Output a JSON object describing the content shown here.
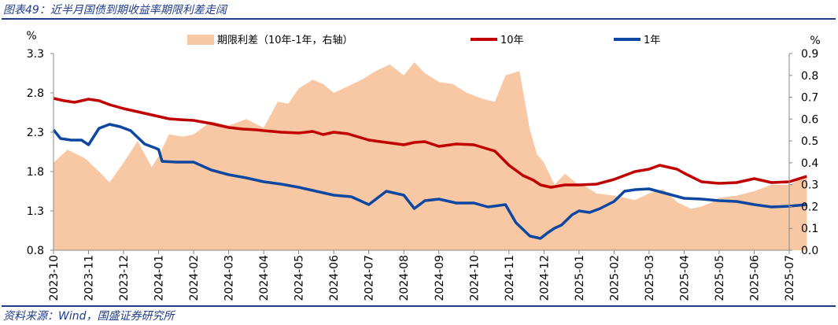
{
  "figure": {
    "title": "图表49：近半月国债到期收益率期限利差走阔",
    "source": "资料来源：Wind，国盛证券研究所"
  },
  "chart_data": {
    "type": "line",
    "title": "图表49：近半月国债到期收益率期限利差走阔",
    "left_axis": {
      "unit": "%",
      "ylim": [
        0.8,
        3.3
      ],
      "ticks": [
        "0.8",
        "1.3",
        "1.8",
        "2.3",
        "2.8",
        "3.3"
      ]
    },
    "right_axis": {
      "unit": "%",
      "ylim": [
        0.0,
        0.9
      ],
      "ticks": [
        "0.0",
        "0.1",
        "0.2",
        "0.3",
        "0.4",
        "0.5",
        "0.6",
        "0.7",
        "0.8",
        "0.9"
      ]
    },
    "x_ticks": [
      "2023-10",
      "2023-11",
      "2023-12",
      "2024-01",
      "2024-02",
      "2024-03",
      "2024-04",
      "2024-05",
      "2024-06",
      "2024-07",
      "2024-08",
      "2024-09",
      "2024-10",
      "2024-11",
      "2024-12",
      "2025-01",
      "2025-02",
      "2025-03",
      "2025-04",
      "2025-05",
      "2025-06",
      "2025-07"
    ],
    "legend": {
      "position": "top",
      "labels": [
        "期限利差（10年-1年，右轴）",
        "10年",
        "1年"
      ]
    },
    "series": [
      {
        "name": "10年",
        "axis": "left",
        "color": "#c00000",
        "x": [
          0,
          0.3,
          0.6,
          1.0,
          1.3,
          1.6,
          2.0,
          2.4,
          2.8,
          3.0,
          3.3,
          3.6,
          4.0,
          4.5,
          5.0,
          5.4,
          5.8,
          6.0,
          6.5,
          7.0,
          7.4,
          7.7,
          8.0,
          8.4,
          8.7,
          9.0,
          9.5,
          10.0,
          10.3,
          10.6,
          11.0,
          11.5,
          12.0,
          12.3,
          12.6,
          12.8,
          13.0,
          13.4,
          13.7,
          13.9,
          14.2,
          14.6,
          15.0,
          15.5,
          16.0,
          16.3,
          16.6,
          17.0,
          17.3,
          17.6,
          17.8,
          18.0,
          18.5,
          19.0,
          19.5,
          20.0,
          20.5,
          21.0,
          21.5
        ],
        "values": [
          2.73,
          2.7,
          2.68,
          2.72,
          2.7,
          2.65,
          2.6,
          2.56,
          2.52,
          2.5,
          2.47,
          2.46,
          2.45,
          2.41,
          2.36,
          2.34,
          2.33,
          2.32,
          2.3,
          2.29,
          2.31,
          2.27,
          2.3,
          2.28,
          2.24,
          2.2,
          2.17,
          2.14,
          2.17,
          2.18,
          2.12,
          2.15,
          2.14,
          2.1,
          2.06,
          1.97,
          1.88,
          1.75,
          1.69,
          1.63,
          1.6,
          1.63,
          1.63,
          1.64,
          1.7,
          1.75,
          1.8,
          1.83,
          1.88,
          1.85,
          1.83,
          1.78,
          1.67,
          1.65,
          1.66,
          1.71,
          1.66,
          1.67,
          1.74
        ]
      },
      {
        "name": "1年",
        "axis": "left",
        "color": "#0d47a1",
        "x": [
          0,
          0.2,
          0.5,
          0.8,
          1.0,
          1.3,
          1.6,
          1.9,
          2.2,
          2.6,
          2.9,
          3.0,
          3.1,
          3.5,
          4.0,
          4.5,
          5.0,
          5.5,
          6.0,
          6.5,
          7.0,
          7.5,
          8.0,
          8.5,
          9.0,
          9.5,
          10.0,
          10.3,
          10.6,
          11.0,
          11.5,
          12.0,
          12.4,
          12.9,
          13.2,
          13.6,
          13.9,
          14.1,
          14.3,
          14.5,
          14.8,
          15.0,
          15.3,
          15.6,
          16.0,
          16.3,
          16.6,
          17.0,
          17.5,
          18.0,
          18.5,
          19.0,
          19.5,
          20.0,
          20.5,
          21.0,
          21.5
        ],
        "values": [
          2.33,
          2.22,
          2.2,
          2.2,
          2.14,
          2.35,
          2.4,
          2.37,
          2.32,
          2.15,
          2.1,
          2.08,
          1.93,
          1.92,
          1.92,
          1.82,
          1.76,
          1.72,
          1.67,
          1.64,
          1.6,
          1.55,
          1.5,
          1.48,
          1.38,
          1.55,
          1.5,
          1.33,
          1.43,
          1.45,
          1.4,
          1.4,
          1.35,
          1.38,
          1.15,
          0.98,
          0.95,
          1.02,
          1.08,
          1.12,
          1.25,
          1.3,
          1.28,
          1.33,
          1.42,
          1.55,
          1.57,
          1.58,
          1.52,
          1.46,
          1.45,
          1.43,
          1.42,
          1.38,
          1.35,
          1.36,
          1.38
        ]
      },
      {
        "name": "期限利差（10年-1年，右轴）",
        "axis": "right",
        "color": "#f8c8a4",
        "x": [
          0,
          0.4,
          0.9,
          1.3,
          1.6,
          2.0,
          2.4,
          2.8,
          3.0,
          3.3,
          3.7,
          4.0,
          4.5,
          5.0,
          5.5,
          6.0,
          6.4,
          6.7,
          7.0,
          7.4,
          7.7,
          8.0,
          8.4,
          8.8,
          9.2,
          9.6,
          10.0,
          10.3,
          10.6,
          11.0,
          11.4,
          11.8,
          12.3,
          12.6,
          12.9,
          13.3,
          13.6,
          13.8,
          14.0,
          14.3,
          14.6,
          14.9,
          15.2,
          15.5,
          16.0,
          16.3,
          16.6,
          17.0,
          17.4,
          17.8,
          18.2,
          18.5,
          18.8,
          19.0,
          19.5,
          20.0,
          20.5,
          21.0,
          21.5
        ],
        "values": [
          0.4,
          0.46,
          0.42,
          0.36,
          0.31,
          0.4,
          0.5,
          0.38,
          0.43,
          0.53,
          0.52,
          0.53,
          0.59,
          0.57,
          0.6,
          0.56,
          0.68,
          0.67,
          0.74,
          0.78,
          0.76,
          0.72,
          0.75,
          0.78,
          0.82,
          0.85,
          0.8,
          0.86,
          0.81,
          0.77,
          0.76,
          0.72,
          0.69,
          0.68,
          0.8,
          0.82,
          0.55,
          0.44,
          0.4,
          0.3,
          0.35,
          0.31,
          0.29,
          0.26,
          0.25,
          0.24,
          0.23,
          0.26,
          0.28,
          0.22,
          0.19,
          0.2,
          0.22,
          0.24,
          0.25,
          0.27,
          0.3,
          0.3,
          0.34
        ]
      }
    ]
  }
}
